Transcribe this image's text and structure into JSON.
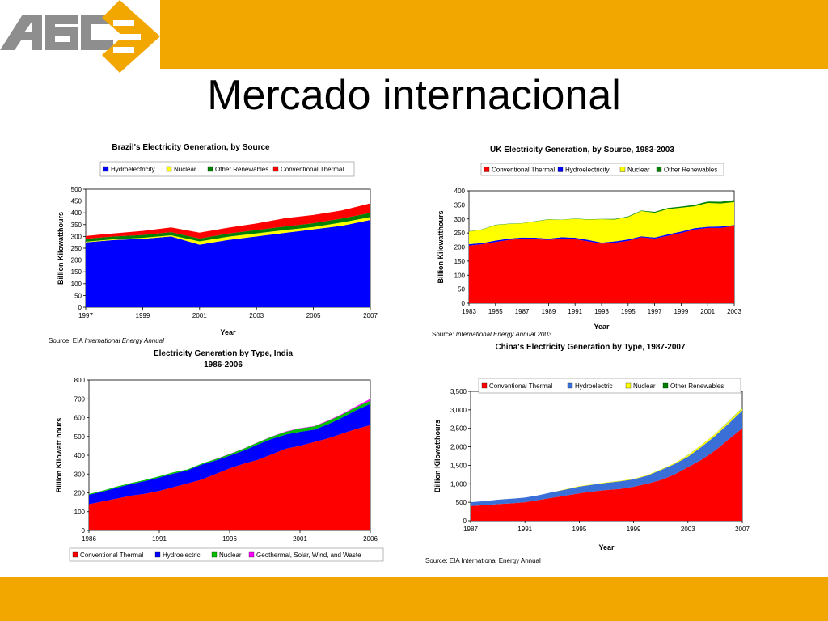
{
  "slide": {
    "title": "Mercado internacional",
    "logo_text": "ABC",
    "accent_color": "#f2a600"
  },
  "chart_data": [
    {
      "type": "area",
      "stacked": true,
      "title": "Brazil's Electricity Generation, by Source",
      "xlabel": "Year",
      "ylabel": "Billion Kilowatthours",
      "xlim": [
        1997,
        2007
      ],
      "ylim": [
        0,
        500
      ],
      "xticks": [
        1997,
        1999,
        2001,
        2003,
        2005,
        2007
      ],
      "yticks": [
        0,
        50,
        100,
        150,
        200,
        250,
        300,
        350,
        400,
        450,
        500
      ],
      "legend_position": "top",
      "source_prefix": "Source: EIA ",
      "source_italic": "International Energy Annual",
      "x": [
        1997,
        1998,
        1999,
        2000,
        2001,
        2002,
        2003,
        2004,
        2005,
        2006,
        2007
      ],
      "series": [
        {
          "name": "Hydroelectricity",
          "color": "#0000ff",
          "values": [
            275,
            285,
            290,
            300,
            265,
            285,
            300,
            315,
            330,
            345,
            370
          ]
        },
        {
          "name": "Nuclear",
          "color": "#ffff00",
          "values": [
            3,
            3,
            4,
            5,
            14,
            14,
            13,
            12,
            10,
            14,
            12
          ]
        },
        {
          "name": "Other Renewables",
          "color": "#008000",
          "values": [
            12,
            12,
            12,
            13,
            12,
            13,
            14,
            15,
            16,
            17,
            18
          ]
        },
        {
          "name": "Conventional Thermal",
          "color": "#ff0000",
          "values": [
            12,
            13,
            17,
            20,
            25,
            25,
            28,
            35,
            35,
            34,
            40
          ]
        }
      ]
    },
    {
      "type": "area",
      "stacked": true,
      "title": "UK Electricity Generation, by Source, 1983-2003",
      "xlabel": "Year",
      "ylabel": "Billion Kilowatthours",
      "xlim": [
        1983,
        2003
      ],
      "ylim": [
        0,
        400
      ],
      "xticks": [
        1983,
        1985,
        1987,
        1989,
        1991,
        1993,
        1995,
        1997,
        1999,
        2001,
        2003
      ],
      "yticks": [
        0,
        50,
        100,
        150,
        200,
        250,
        300,
        350,
        400
      ],
      "legend_position": "top",
      "source_prefix": "Source: ",
      "source_italic": "International Energy Annual 2003",
      "x": [
        1983,
        1984,
        1985,
        1986,
        1987,
        1988,
        1989,
        1990,
        1991,
        1992,
        1993,
        1994,
        1995,
        1996,
        1997,
        1998,
        1999,
        2000,
        2001,
        2002,
        2003
      ],
      "series": [
        {
          "name": "Conventional Thermal",
          "color": "#ff0000",
          "values": [
            205,
            210,
            218,
            225,
            230,
            228,
            225,
            230,
            228,
            220,
            212,
            215,
            222,
            235,
            230,
            240,
            250,
            262,
            268,
            268,
            275
          ]
        },
        {
          "name": "Hydroelectricity",
          "color": "#0000ff",
          "values": [
            5,
            4,
            5,
            5,
            4,
            5,
            5,
            5,
            5,
            5,
            4,
            5,
            5,
            3,
            4,
            5,
            5,
            5,
            4,
            5,
            3
          ]
        },
        {
          "name": "Nuclear",
          "color": "#ffff00",
          "values": [
            45,
            48,
            55,
            52,
            50,
            58,
            68,
            62,
            67,
            73,
            83,
            78,
            80,
            90,
            88,
            90,
            85,
            78,
            85,
            82,
            82
          ]
        },
        {
          "name": "Other Renewables",
          "color": "#008000",
          "values": [
            1,
            1,
            1,
            1,
            1,
            1,
            1,
            1,
            1,
            1,
            1,
            2,
            2,
            2,
            3,
            4,
            4,
            5,
            5,
            6,
            7
          ]
        }
      ]
    },
    {
      "type": "area",
      "stacked": true,
      "title": "Electricity Generation by Type, India",
      "subtitle": "1986-2006",
      "xlabel": "",
      "ylabel": "Billion Kilowatt hours",
      "xlim": [
        1986,
        2006
      ],
      "ylim": [
        0,
        800
      ],
      "xticks": [
        1986,
        1991,
        1996,
        2001,
        2006
      ],
      "yticks": [
        0,
        100,
        200,
        300,
        400,
        500,
        600,
        700,
        800
      ],
      "legend_position": "bottom",
      "x": [
        1986,
        1987,
        1988,
        1989,
        1990,
        1991,
        1992,
        1993,
        1994,
        1995,
        1996,
        1997,
        1998,
        1999,
        2000,
        2001,
        2002,
        2003,
        2004,
        2005,
        2006
      ],
      "series": [
        {
          "name": "Conventional Thermal",
          "color": "#ff0000",
          "values": [
            140,
            155,
            170,
            185,
            195,
            210,
            230,
            250,
            270,
            300,
            330,
            355,
            375,
            405,
            435,
            450,
            470,
            490,
            515,
            540,
            560
          ]
        },
        {
          "name": "Hydroelectric",
          "color": "#0000ff",
          "values": [
            50,
            52,
            58,
            62,
            68,
            72,
            72,
            70,
            80,
            72,
            68,
            70,
            82,
            82,
            75,
            75,
            66,
            75,
            85,
            100,
            113
          ]
        },
        {
          "name": "Nuclear",
          "color": "#00c000",
          "values": [
            4,
            5,
            6,
            5,
            6,
            6,
            7,
            5,
            5,
            7,
            8,
            10,
            11,
            12,
            15,
            17,
            17,
            17,
            16,
            16,
            17
          ]
        },
        {
          "name": "Geothermal, Solar, Wind, and Waste",
          "color": "#ff00ff",
          "values": [
            0,
            0,
            0,
            0,
            0,
            0,
            0,
            0,
            0,
            1,
            1,
            1,
            1,
            1,
            2,
            2,
            2,
            3,
            4,
            5,
            10
          ]
        }
      ]
    },
    {
      "type": "area",
      "stacked": true,
      "title": "China's Electricity Generation by Type, 1987-2007",
      "xlabel": "Year",
      "ylabel": "Billion Kilowatthours",
      "xlim": [
        1987,
        2007
      ],
      "ylim": [
        0,
        3500
      ],
      "xticks": [
        1987,
        1991,
        1995,
        1999,
        2003,
        2007
      ],
      "yticks": [
        "0",
        "500",
        "1,000",
        "1,500",
        "2,000",
        "2,500",
        "3,000",
        "3,500"
      ],
      "legend_position": "top",
      "source_prefix": "Source: EIA International Energy Annual",
      "source_italic": "",
      "x": [
        1987,
        1988,
        1989,
        1990,
        1991,
        1992,
        1993,
        1994,
        1995,
        1996,
        1997,
        1998,
        1999,
        2000,
        2001,
        2002,
        2003,
        2004,
        2005,
        2006,
        2007
      ],
      "series": [
        {
          "name": "Conventional Thermal",
          "color": "#ff0000",
          "values": [
            400,
            420,
            450,
            470,
            500,
            560,
            620,
            680,
            740,
            790,
            830,
            860,
            920,
            1000,
            1100,
            1250,
            1450,
            1650,
            1900,
            2200,
            2500
          ]
        },
        {
          "name": "Hydroelectric",
          "color": "#3a6fd8",
          "values": [
            100,
            110,
            120,
            125,
            125,
            130,
            150,
            165,
            185,
            185,
            195,
            205,
            200,
            220,
            270,
            280,
            280,
            350,
            395,
            430,
            480
          ]
        },
        {
          "name": "Nuclear",
          "color": "#ffff00",
          "values": [
            0,
            0,
            0,
            0,
            0,
            0,
            2,
            12,
            12,
            13,
            14,
            14,
            15,
            16,
            17,
            25,
            43,
            50,
            50,
            55,
            60
          ]
        },
        {
          "name": "Other Renewables",
          "color": "#008000",
          "values": [
            0,
            0,
            0,
            0,
            0,
            0,
            0,
            0,
            0,
            0,
            1,
            1,
            1,
            1,
            2,
            2,
            3,
            4,
            5,
            8,
            12
          ]
        }
      ]
    }
  ]
}
